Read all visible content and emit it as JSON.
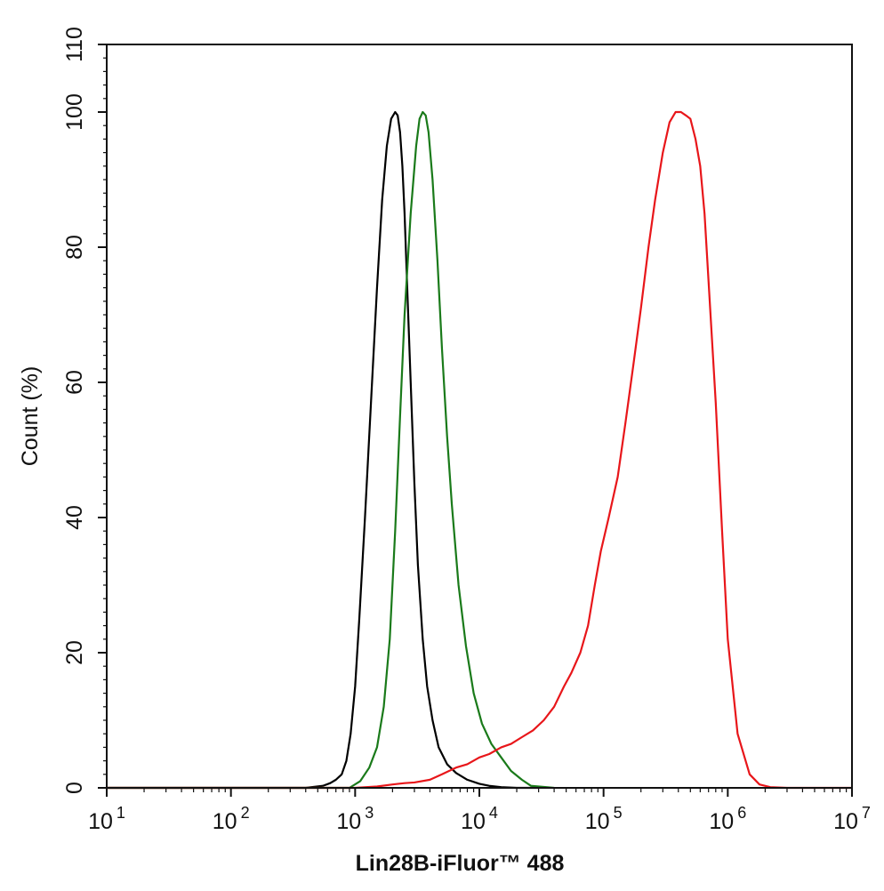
{
  "chart_data": {
    "type": "line",
    "title": "",
    "xlabel": "Lin28B-iFluor™ 488",
    "ylabel": "Count  (%)",
    "x_scale": "log",
    "xlim": [
      10,
      10000000
    ],
    "ylim": [
      0,
      110
    ],
    "x_ticks": [
      {
        "value": 10,
        "base": "10",
        "exp": "1"
      },
      {
        "value": 100,
        "base": "10",
        "exp": "2"
      },
      {
        "value": 1000,
        "base": "10",
        "exp": "3"
      },
      {
        "value": 10000,
        "base": "10",
        "exp": "4"
      },
      {
        "value": 100000,
        "base": "10",
        "exp": "5"
      },
      {
        "value": 1000000,
        "base": "10",
        "exp": "6"
      },
      {
        "value": 10000000,
        "base": "10",
        "exp": "7"
      }
    ],
    "y_ticks": [
      0,
      20,
      40,
      60,
      80,
      100,
      110
    ],
    "grid": false,
    "legend": "none",
    "series": [
      {
        "color": "#000000",
        "x": [
          10,
          400,
          550,
          630,
          700,
          780,
          850,
          920,
          1000,
          1080,
          1200,
          1350,
          1500,
          1650,
          1800,
          1950,
          2100,
          2200,
          2300,
          2400,
          2500,
          2650,
          2800,
          3000,
          3200,
          3500,
          3800,
          4200,
          4700,
          5500,
          6500,
          8000,
          10000,
          12000,
          15000,
          20000,
          30000
        ],
        "y": [
          0,
          0,
          0.3,
          0.7,
          1.2,
          2,
          4,
          8,
          15,
          25,
          40,
          58,
          74,
          87,
          95,
          99,
          100,
          99.5,
          97,
          92,
          85,
          72,
          60,
          45,
          33,
          22,
          15,
          10,
          6,
          3.5,
          2.2,
          1.2,
          0.6,
          0.3,
          0.1,
          0,
          0
        ]
      },
      {
        "color": "#1a7a1a",
        "x": [
          10,
          900,
          1100,
          1300,
          1500,
          1700,
          1900,
          2100,
          2300,
          2500,
          2800,
          3100,
          3300,
          3500,
          3700,
          3900,
          4200,
          4600,
          5000,
          5500,
          6000,
          6800,
          7800,
          9000,
          10500,
          12500,
          15000,
          18000,
          22000,
          26000,
          40000
        ],
        "y": [
          0,
          0,
          1,
          3,
          6,
          12,
          22,
          38,
          55,
          70,
          85,
          95,
          99,
          100,
          99.5,
          97,
          90,
          78,
          65,
          52,
          42,
          30,
          21,
          14,
          9.5,
          6.5,
          4.5,
          2.5,
          1.2,
          0.3,
          0
        ]
      },
      {
        "color": "#e8161a",
        "x": [
          10,
          1000,
          1500,
          2000,
          2500,
          3000,
          4000,
          5000,
          6500,
          8000,
          10000,
          12000,
          15000,
          18000,
          22000,
          27000,
          33000,
          40000,
          48000,
          55000,
          65000,
          75000,
          85000,
          95000,
          110000,
          130000,
          150000,
          175000,
          200000,
          230000,
          260000,
          300000,
          340000,
          380000,
          420000,
          460000,
          500000,
          550000,
          600000,
          650000,
          700000,
          800000,
          900000,
          1000000,
          1200000,
          1500000,
          1800000,
          2200000,
          3000000,
          10000000
        ],
        "y": [
          0,
          0,
          0.2,
          0.5,
          0.7,
          0.8,
          1.2,
          2,
          3,
          3.5,
          4.5,
          5,
          6,
          6.5,
          7.5,
          8.5,
          10,
          12,
          15,
          17,
          20,
          24,
          30,
          35,
          40,
          46,
          54,
          63,
          71,
          80,
          87,
          94,
          98.5,
          100,
          100,
          99.5,
          99,
          96,
          92,
          85,
          75,
          57,
          38,
          22,
          8,
          2,
          0.5,
          0.1,
          0,
          0
        ]
      }
    ]
  }
}
